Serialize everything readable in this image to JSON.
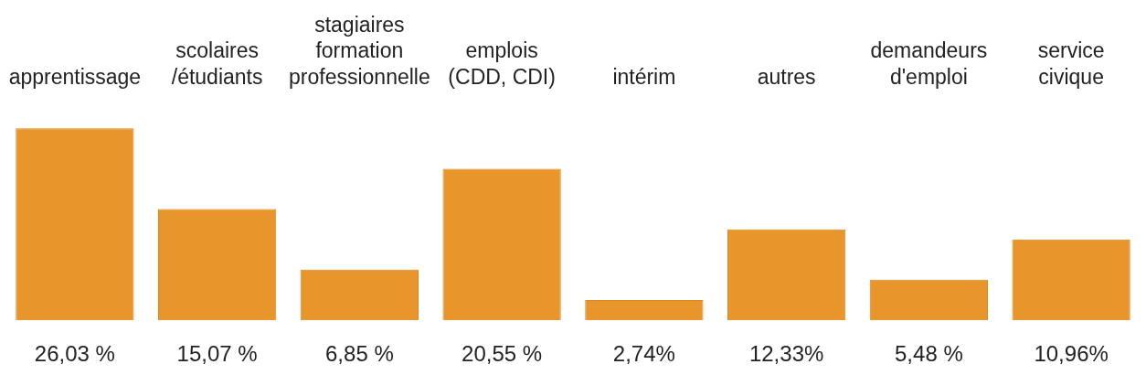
{
  "chart_data": {
    "type": "bar",
    "categories": [
      "apprentissage",
      "scolaires\n/étudiants",
      "stagiaires\nformation\nprofessionnelle",
      "emplois\n(CDD, CDI)",
      "intérim",
      "autres",
      "demandeurs\nd'emploi",
      "service\ncivique"
    ],
    "values": [
      26.03,
      15.07,
      6.85,
      20.55,
      2.74,
      12.33,
      5.48,
      10.96
    ],
    "value_labels": [
      "26,03 %",
      "15,07 %",
      "6,85 %",
      "20,55 %",
      "2,74%",
      "12,33%",
      "5,48 %",
      "10,96%"
    ],
    "color": "#e8952b",
    "grid": false,
    "legend": false
  }
}
